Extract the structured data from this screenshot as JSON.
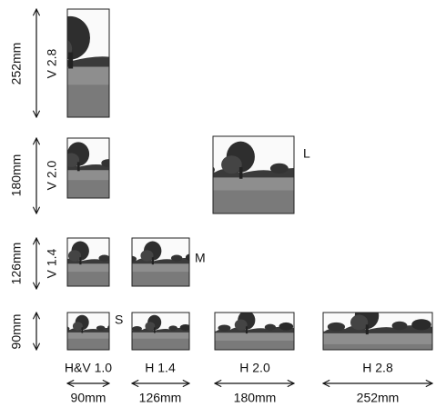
{
  "rows": [
    {
      "size": "252mm",
      "label": "V 2.8"
    },
    {
      "size": "180mm",
      "label": "V 2.0"
    },
    {
      "size": "126mm",
      "label": "V 1.4"
    },
    {
      "size": "90mm"
    }
  ],
  "columns": [
    {
      "label": "H&V 1.0",
      "size": "90mm"
    },
    {
      "label": "H 1.4",
      "size": "126mm"
    },
    {
      "label": "H 2.0",
      "size": "180mm"
    },
    {
      "label": "H 2.8",
      "size": "252mm"
    }
  ],
  "size_classes": [
    "S",
    "M",
    "L"
  ]
}
